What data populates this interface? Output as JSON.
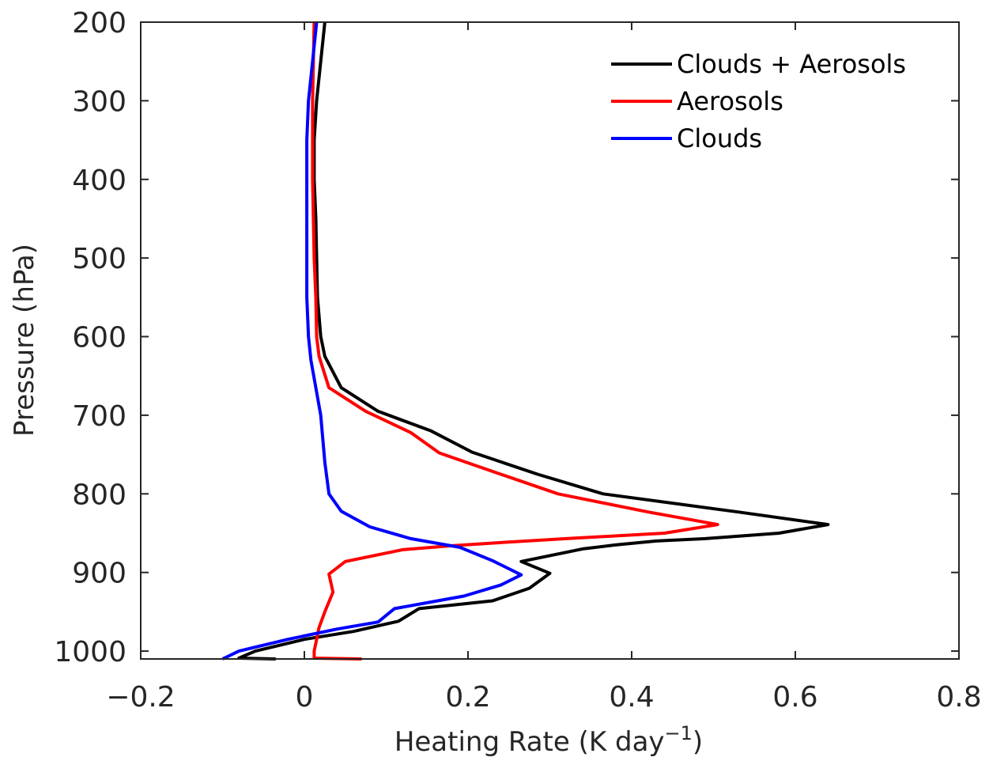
{
  "chart_data": {
    "type": "line",
    "xlabel": "Heating Rate (K day",
    "xlabel_sup": "−1",
    "xlabel_end": ")",
    "ylabel": "Pressure (hPa)",
    "xlim": [
      -0.2,
      0.8
    ],
    "ylim": [
      200,
      1010
    ],
    "y_reversed": true,
    "grid": false,
    "legend_position": "top-right",
    "xticks": [
      -0.2,
      0,
      0.2,
      0.4,
      0.6,
      0.8
    ],
    "xtick_labels": [
      "−0.2",
      "0",
      "0.2",
      "0.4",
      "0.6",
      "0.8"
    ],
    "yticks": [
      200,
      300,
      400,
      500,
      600,
      700,
      800,
      900,
      1000
    ],
    "ytick_labels": [
      "200",
      "300",
      "400",
      "500",
      "600",
      "700",
      "800",
      "900",
      "1000"
    ],
    "series": [
      {
        "name": "Clouds + Aerosols",
        "color": "#000000",
        "points": [
          [
            0.025,
            200
          ],
          [
            0.02,
            250
          ],
          [
            0.015,
            300
          ],
          [
            0.012,
            350
          ],
          [
            0.012,
            400
          ],
          [
            0.014,
            450
          ],
          [
            0.015,
            500
          ],
          [
            0.016,
            550
          ],
          [
            0.02,
            600
          ],
          [
            0.025,
            625
          ],
          [
            0.045,
            665
          ],
          [
            0.09,
            695
          ],
          [
            0.155,
            720
          ],
          [
            0.205,
            747
          ],
          [
            0.285,
            775
          ],
          [
            0.365,
            800
          ],
          [
            0.53,
            823
          ],
          [
            0.64,
            839
          ],
          [
            0.58,
            850
          ],
          [
            0.49,
            857
          ],
          [
            0.43,
            860
          ],
          [
            0.38,
            865
          ],
          [
            0.34,
            870
          ],
          [
            0.265,
            886
          ],
          [
            0.3,
            901
          ],
          [
            0.275,
            920
          ],
          [
            0.23,
            936
          ],
          [
            0.14,
            946
          ],
          [
            0.115,
            962
          ],
          [
            0.06,
            975
          ],
          [
            0.0,
            985
          ],
          [
            -0.06,
            1000
          ],
          [
            -0.08,
            1009
          ],
          [
            -0.035,
            1012
          ]
        ]
      },
      {
        "name": "Aerosols",
        "color": "#ff0000",
        "points": [
          [
            0.012,
            200
          ],
          [
            0.01,
            300
          ],
          [
            0.01,
            400
          ],
          [
            0.012,
            500
          ],
          [
            0.014,
            550
          ],
          [
            0.015,
            600
          ],
          [
            0.018,
            625
          ],
          [
            0.03,
            665
          ],
          [
            0.075,
            695
          ],
          [
            0.13,
            722
          ],
          [
            0.165,
            748
          ],
          [
            0.24,
            775
          ],
          [
            0.31,
            800
          ],
          [
            0.42,
            823
          ],
          [
            0.505,
            839
          ],
          [
            0.44,
            850
          ],
          [
            0.32,
            857
          ],
          [
            0.24,
            862
          ],
          [
            0.18,
            866
          ],
          [
            0.12,
            871
          ],
          [
            0.05,
            886
          ],
          [
            0.03,
            902
          ],
          [
            0.035,
            925
          ],
          [
            0.025,
            950
          ],
          [
            0.018,
            970
          ],
          [
            0.015,
            985
          ],
          [
            0.012,
            1000
          ],
          [
            0.012,
            1009
          ],
          [
            0.07,
            1012
          ]
        ]
      },
      {
        "name": "Clouds",
        "color": "#0000ff",
        "points": [
          [
            0.015,
            200
          ],
          [
            0.01,
            250
          ],
          [
            0.005,
            300
          ],
          [
            0.003,
            350
          ],
          [
            0.003,
            400
          ],
          [
            0.003,
            450
          ],
          [
            0.003,
            500
          ],
          [
            0.003,
            550
          ],
          [
            0.005,
            600
          ],
          [
            0.008,
            630
          ],
          [
            0.02,
            700
          ],
          [
            0.025,
            760
          ],
          [
            0.03,
            800
          ],
          [
            0.045,
            822
          ],
          [
            0.08,
            842
          ],
          [
            0.13,
            857
          ],
          [
            0.19,
            868
          ],
          [
            0.23,
            885
          ],
          [
            0.265,
            903
          ],
          [
            0.24,
            916
          ],
          [
            0.195,
            930
          ],
          [
            0.11,
            946
          ],
          [
            0.09,
            963
          ],
          [
            0.04,
            972
          ],
          [
            -0.02,
            985
          ],
          [
            -0.06,
            995
          ],
          [
            -0.08,
            1000
          ],
          [
            -0.1,
            1012
          ]
        ]
      }
    ]
  }
}
